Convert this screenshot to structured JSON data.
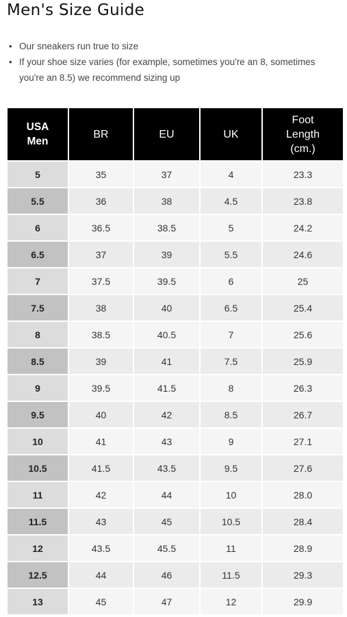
{
  "title": "Men's Size Guide",
  "notes": [
    "Our sneakers run true to size",
    "If your shoe size varies (for example, sometimes you're an 8, sometimes you're an 8.5) we recommend sizing up"
  ],
  "table": {
    "headers": {
      "usa_line1": "USA",
      "usa_line2": "Men",
      "br": "BR",
      "eu": "EU",
      "uk": "UK",
      "foot_line1": "Foot",
      "foot_line2": "Length",
      "foot_line3": "(cm.)"
    },
    "rows": [
      [
        "5",
        "35",
        "37",
        "4",
        "23.3"
      ],
      [
        "5.5",
        "36",
        "38",
        "4.5",
        "23.8"
      ],
      [
        "6",
        "36.5",
        "38.5",
        "5",
        "24.2"
      ],
      [
        "6.5",
        "37",
        "39",
        "5.5",
        "24.6"
      ],
      [
        "7",
        "37.5",
        "39.5",
        "6",
        "25"
      ],
      [
        "7.5",
        "38",
        "40",
        "6.5",
        "25.4"
      ],
      [
        "8",
        "38.5",
        "40.5",
        "7",
        "25.6"
      ],
      [
        "8.5",
        "39",
        "41",
        "7.5",
        "25.9"
      ],
      [
        "9",
        "39.5",
        "41.5",
        "8",
        "26.3"
      ],
      [
        "9.5",
        "40",
        "42",
        "8.5",
        "26.7"
      ],
      [
        "10",
        "41",
        "43",
        "9",
        "27.1"
      ],
      [
        "10.5",
        "41.5",
        "43.5",
        "9.5",
        "27.6"
      ],
      [
        "11",
        "42",
        "44",
        "10",
        "28.0"
      ],
      [
        "11.5",
        "43",
        "45",
        "10.5",
        "28.4"
      ],
      [
        "12",
        "43.5",
        "45.5",
        "11",
        "28.9"
      ],
      [
        "12.5",
        "44",
        "46",
        "11.5",
        "29.3"
      ],
      [
        "13",
        "45",
        "47",
        "12",
        "29.9"
      ]
    ]
  },
  "colors": {
    "header_bg": "#000000",
    "header_text": "#ffffff",
    "usa_odd_bg": "#dcdcdc",
    "usa_even_bg": "#c2c2c2",
    "cell_odd_bg": "#f5f5f5",
    "cell_even_bg": "#ebebeb"
  }
}
